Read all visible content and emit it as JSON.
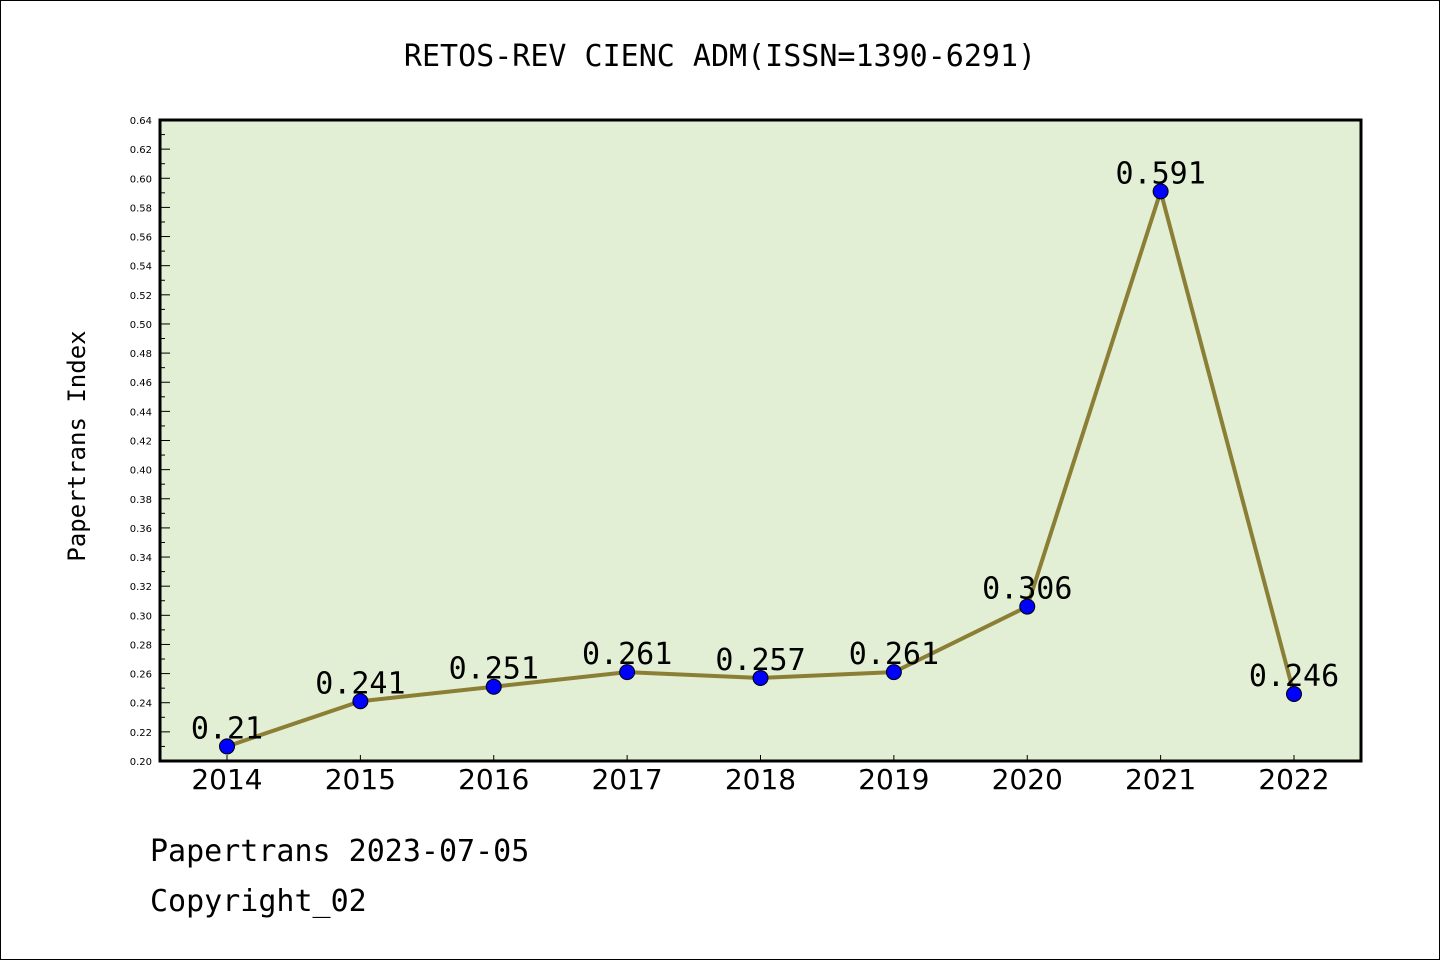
{
  "chart_data": {
    "type": "line",
    "title": "RETOS-REV CIENC ADM(ISSN=1390-6291)",
    "xlabel": "",
    "ylabel": "Papertrans Index",
    "categories": [
      "2014",
      "2015",
      "2016",
      "2017",
      "2018",
      "2019",
      "2020",
      "2021",
      "2022"
    ],
    "values": [
      0.21,
      0.241,
      0.251,
      0.261,
      0.257,
      0.261,
      0.306,
      0.591,
      0.246
    ],
    "data_labels": [
      "0.21",
      "0.241",
      "0.251",
      "0.261",
      "0.257",
      "0.261",
      "0.306",
      "0.591",
      "0.246"
    ],
    "ylim": [
      0.2,
      0.64
    ],
    "yticks": [
      "0.20",
      "0.22",
      "0.24",
      "0.26",
      "0.28",
      "0.30",
      "0.32",
      "0.34",
      "0.36",
      "0.38",
      "0.40",
      "0.42",
      "0.44",
      "0.46",
      "0.48",
      "0.50",
      "0.52",
      "0.54",
      "0.56",
      "0.58",
      "0.60",
      "0.62",
      "0.64"
    ],
    "grid": false,
    "colors": {
      "plot_background": "#e2efd5",
      "line": "#8b7f35",
      "marker": "#0000ff"
    }
  },
  "footer": {
    "line1": "Papertrans 2023-07-05",
    "line2": "Copyright_02"
  }
}
